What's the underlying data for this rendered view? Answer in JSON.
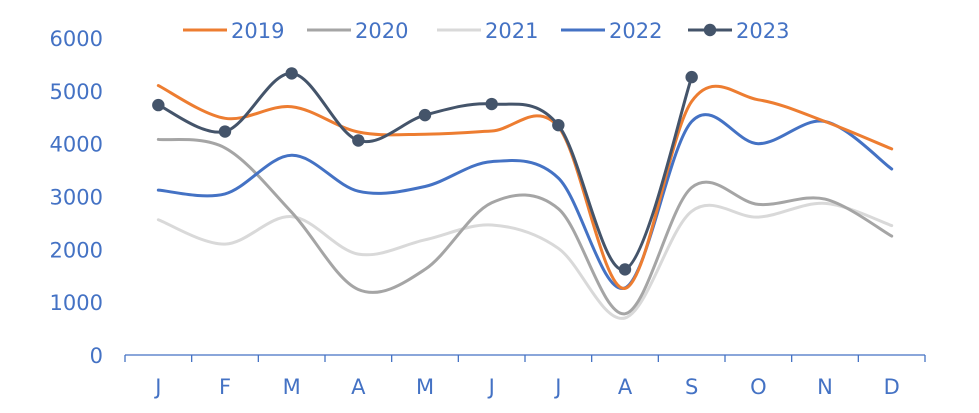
{
  "chart_data": {
    "type": "line",
    "categories": [
      "J",
      "F",
      "M",
      "A",
      "M",
      "J",
      "J",
      "A",
      "S",
      "O",
      "N",
      "D"
    ],
    "ylim": [
      0,
      6000
    ],
    "yticks": [
      0,
      1000,
      2000,
      3000,
      4000,
      5000,
      6000
    ],
    "grid": false,
    "legend_position": "top",
    "series": [
      {
        "name": "2019",
        "color": "#ED7D31",
        "markers": false,
        "values": [
          5100,
          4480,
          4700,
          4220,
          4180,
          4240,
          4320,
          1260,
          4800,
          4830,
          4420,
          3900
        ]
      },
      {
        "name": "2020",
        "color": "#A5A5A5",
        "markers": false,
        "values": [
          4080,
          3920,
          2700,
          1240,
          1620,
          2880,
          2770,
          780,
          3170,
          2850,
          2950,
          2250
        ]
      },
      {
        "name": "2021",
        "color": "#D9D9D9",
        "markers": false,
        "values": [
          2560,
          2100,
          2620,
          1910,
          2180,
          2460,
          2020,
          700,
          2720,
          2610,
          2870,
          2450
        ]
      },
      {
        "name": "2022",
        "color": "#4472C4",
        "markers": false,
        "values": [
          3120,
          3050,
          3780,
          3100,
          3190,
          3660,
          3350,
          1270,
          4420,
          4000,
          4420,
          3520
        ]
      },
      {
        "name": "2023",
        "color": "#44546A",
        "markers": true,
        "values": [
          4730,
          4230,
          5330,
          4060,
          4540,
          4750,
          4350,
          1620,
          5260,
          null,
          null,
          null
        ]
      }
    ]
  }
}
